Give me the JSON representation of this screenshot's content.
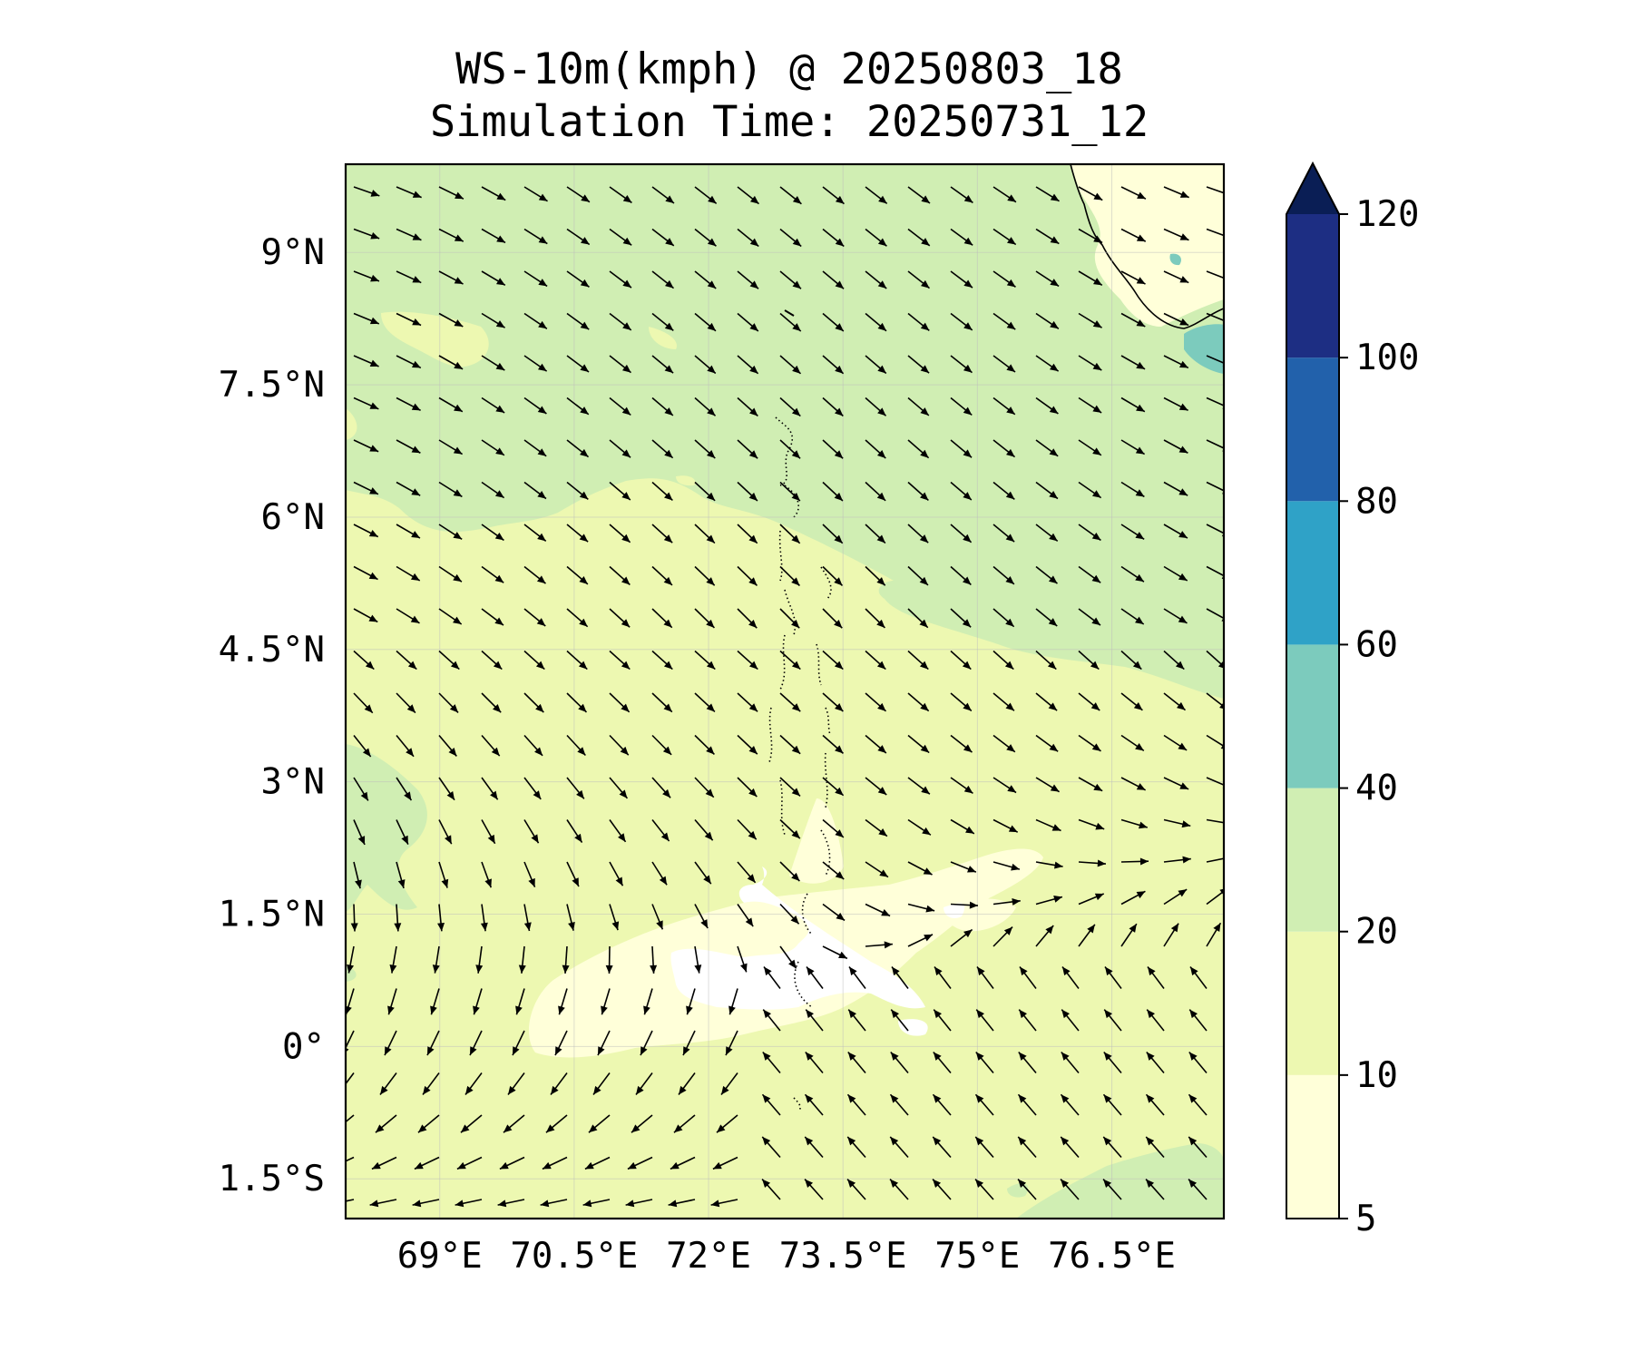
{
  "title": {
    "line1": "WS-10m(kmph) @ 20250803_18",
    "line2": "Simulation Time: 20250731_12"
  },
  "map": {
    "lon_range": [
      67.95,
      77.75
    ],
    "lat_range": [
      -1.95,
      10.0
    ],
    "lon_ticks": [
      {
        "value": 69,
        "label": "69°E"
      },
      {
        "value": 70.5,
        "label": "70.5°E"
      },
      {
        "value": 72,
        "label": "72°E"
      },
      {
        "value": 73.5,
        "label": "73.5°E"
      },
      {
        "value": 75,
        "label": "75°E"
      },
      {
        "value": 76.5,
        "label": "76.5°E"
      }
    ],
    "lat_ticks": [
      {
        "value": 9,
        "label": "9°N"
      },
      {
        "value": 7.5,
        "label": "7.5°N"
      },
      {
        "value": 6,
        "label": "6°N"
      },
      {
        "value": 4.5,
        "label": "4.5°N"
      },
      {
        "value": 3,
        "label": "3°N"
      },
      {
        "value": 1.5,
        "label": "1.5°N"
      },
      {
        "value": 0,
        "label": "0°"
      },
      {
        "value": -1.5,
        "label": "1.5°S"
      }
    ],
    "gridlines": true,
    "field": "10 m wind speed with wind direction arrows",
    "colormap": "YlGnBu"
  },
  "colorbar": {
    "levels": [
      {
        "label": "5"
      },
      {
        "label": "10"
      },
      {
        "label": "20"
      },
      {
        "label": "40"
      },
      {
        "label": "60"
      },
      {
        "label": "80"
      },
      {
        "label": "100"
      },
      {
        "label": "120"
      }
    ],
    "colors": [
      "#ffffd9",
      "#edf8b1",
      "#d0eeb3",
      "#7ccbbd",
      "#2fa2c7",
      "#2261ab",
      "#1d2e83",
      "#0a1e55"
    ],
    "extend": "max"
  }
}
